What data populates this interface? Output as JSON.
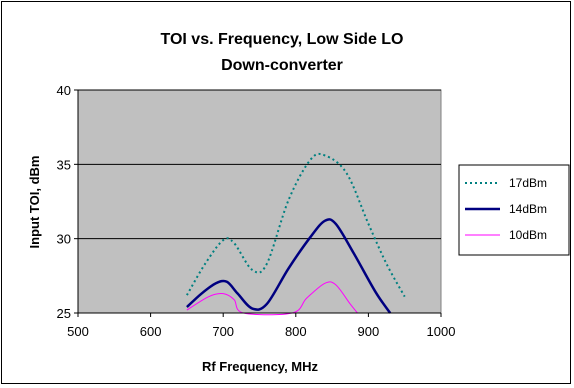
{
  "chart_data": {
    "type": "line",
    "title_line1": "TOI vs. Frequency, Low Side LO",
    "title_line2": "Down-converter",
    "xlabel": "Rf Frequency, MHz",
    "ylabel": "Input TOI, dBm",
    "xlim": [
      500,
      1000
    ],
    "ylim": [
      25,
      40
    ],
    "xticks": [
      500,
      600,
      700,
      800,
      900,
      1000
    ],
    "yticks": [
      25,
      30,
      35,
      40
    ],
    "grid": "horizontal",
    "legend_position": "right",
    "plot_background": "#c0c0c0",
    "series": [
      {
        "name": "17dBm",
        "color": "#008080",
        "style": "dotted",
        "points": [
          [
            650,
            26.2
          ],
          [
            675,
            28.3
          ],
          [
            700,
            29.9
          ],
          [
            715,
            29.7
          ],
          [
            740,
            27.9
          ],
          [
            760,
            28.3
          ],
          [
            790,
            32.6
          ],
          [
            820,
            35.3
          ],
          [
            840,
            35.6
          ],
          [
            870,
            34.4
          ],
          [
            900,
            31.0
          ],
          [
            925,
            28.3
          ],
          [
            950,
            26.1
          ]
        ]
      },
      {
        "name": "14dBm",
        "color": "#000080",
        "style": "solid",
        "points": [
          [
            650,
            25.4
          ],
          [
            670,
            26.3
          ],
          [
            690,
            27.0
          ],
          [
            705,
            27.1
          ],
          [
            720,
            26.3
          ],
          [
            740,
            25.3
          ],
          [
            760,
            25.6
          ],
          [
            790,
            28.0
          ],
          [
            820,
            30.1
          ],
          [
            840,
            31.2
          ],
          [
            855,
            31.0
          ],
          [
            880,
            29.0
          ],
          [
            910,
            26.4
          ],
          [
            930,
            25.0
          ]
        ]
      },
      {
        "name": "10dBm",
        "color": "#ff00ff",
        "style": "solid",
        "points": [
          [
            650,
            25.2
          ],
          [
            680,
            26.1
          ],
          [
            700,
            26.3
          ],
          [
            715,
            25.9
          ],
          [
            728,
            25.0
          ],
          [
            795,
            25.0
          ],
          [
            815,
            26.0
          ],
          [
            840,
            27.0
          ],
          [
            855,
            26.9
          ],
          [
            875,
            25.6
          ],
          [
            885,
            25.0
          ]
        ]
      }
    ]
  }
}
